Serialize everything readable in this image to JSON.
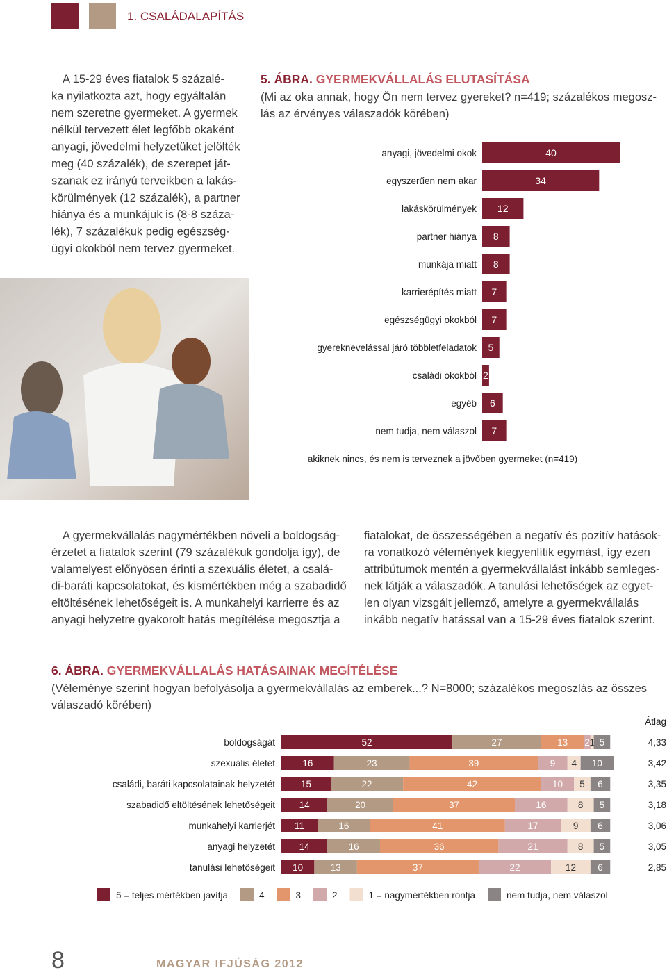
{
  "header": {
    "section": "1. CSALÁDALAPÍTÁS"
  },
  "intro": [
    "A 15-29 éves fiatalok 5 százalé-",
    "ka nyilatkozta azt, hogy egyáltalán",
    "nem szeretne gyermeket. A gyermek",
    "nélkül tervezett élet legfőbb okaként",
    "anyagi, jövedelmi helyzetüket jelölték",
    "meg (40 százalék), de szerepet ját-",
    "szanak ez irányú terveikben a lakás-",
    "körülmények (12 százalék), a partner",
    "hiánya és a munkájuk is (8-8 száza-",
    "lék), 7 százalékuk pedig egészség-",
    "ügyi okokból nem tervez gyermeket."
  ],
  "body_left": [
    "A gyermekvállalás nagymértékben növeli a boldogság-",
    "érzetet a fiatalok szerint (79 százalékuk gondolja így), de",
    "valamelyest előnyösen érinti a szexuális életet, a csalá-",
    "di-baráti kapcsolatokat, és kismértékben még a szabadidő",
    "eltöltésének lehetőségeit is. A munkahelyi karrierre és az",
    "anyagi helyzetre gyakorolt hatás megítélése megosztja a"
  ],
  "body_right": [
    "fiatalokat, de összességében a negatív és pozitív hatások-",
    "ra vonatkozó vélemények kiegyenlítik egymást, így ezen",
    "attribútumok mentén a gyermekvállalást inkább semleges-",
    "nek látják a válaszadók. A tanulási lehetőségek az egyet-",
    "len olyan vizsgált jellemző, amelyre a gyermekvállalás",
    "inkább negatív hatással van a 15-29 éves fiatalok szerint."
  ],
  "footer": {
    "page_number": 8,
    "publication": "MAGYAR IFJÚSÁG 2012"
  },
  "chart_data": [
    {
      "type": "bar",
      "figure_label": "5. ÁBRA.",
      "title": "GYERMEKVÁLLALÁS ELUTASÍTÁSA",
      "subtitle": [
        "(Mi az oka annak, hogy Ön nem tervez gyereket? n=419; százalékos megosz-",
        "lás az érvényes válaszadók körében)"
      ],
      "categories": [
        "anyagi, jövedelmi okok",
        "egyszerűen nem akar",
        "lakáskörülmények",
        "partner hiánya",
        "munkája miatt",
        "karrierépítés miatt",
        "egészségügyi okokból",
        "gyereknevelással járó többletfeladatok",
        "családi okokból",
        "egyéb",
        "nem tudja, nem válaszol"
      ],
      "values": [
        40,
        34,
        12,
        8,
        8,
        7,
        7,
        5,
        2,
        6,
        7
      ],
      "color": "#7c1f30",
      "note": "akiknek nincs, és nem is terveznek a jövőben gyermeket (n=419)"
    },
    {
      "type": "stacked_bar",
      "figure_label": "6. ÁBRA.",
      "title": "GYERMEKVÁLLALÁS HATÁSAINAK MEGÍTÉLÉSE",
      "subtitle": [
        "(Véleménye szerint hogyan befolyásolja a gyermekvállalás az emberek...? N=8000; százalékos megoszlás az összes",
        "válaszadó körében)"
      ],
      "categories": [
        "boldogságát",
        "szexuális életét",
        "családi, baráti kapcsolatainak helyzetét",
        "szabadidő eltöltésének lehetőségeit",
        "munkahelyi karrierjét",
        "anyagi helyzetét",
        "tanulási lehetőségeit"
      ],
      "series": [
        {
          "name": "5 = teljes mértékben javítja",
          "color": "#7c1f30",
          "values": [
            52,
            16,
            15,
            14,
            11,
            14,
            10
          ]
        },
        {
          "name": "4",
          "color": "#b39a84",
          "values": [
            27,
            23,
            22,
            20,
            16,
            16,
            13
          ]
        },
        {
          "name": "3",
          "color": "#e3966b",
          "values": [
            13,
            39,
            42,
            37,
            41,
            36,
            37
          ]
        },
        {
          "name": "2",
          "color": "#d2a9aa",
          "values": [
            2,
            9,
            10,
            16,
            17,
            21,
            22
          ]
        },
        {
          "name": "1 = nagymértékben rontja",
          "color": "#f2dfcf",
          "values": [
            1,
            4,
            5,
            8,
            9,
            8,
            12
          ]
        },
        {
          "name": "nem tudja, nem válaszol",
          "color": "#8a8484",
          "values": [
            5,
            10,
            6,
            5,
            6,
            5,
            6
          ]
        }
      ],
      "average_title": "Átlag",
      "averages": [
        {
          "value": 4.33,
          "label": "4,33"
        },
        {
          "value": 3.42,
          "label": "3,42"
        },
        {
          "value": 3.35,
          "label": "3,35"
        },
        {
          "value": 3.18,
          "label": "3,18"
        },
        {
          "value": 3.06,
          "label": "3,06"
        },
        {
          "value": 3.05,
          "label": "3,05"
        },
        {
          "value": 2.85,
          "label": "2,85"
        }
      ]
    }
  ]
}
